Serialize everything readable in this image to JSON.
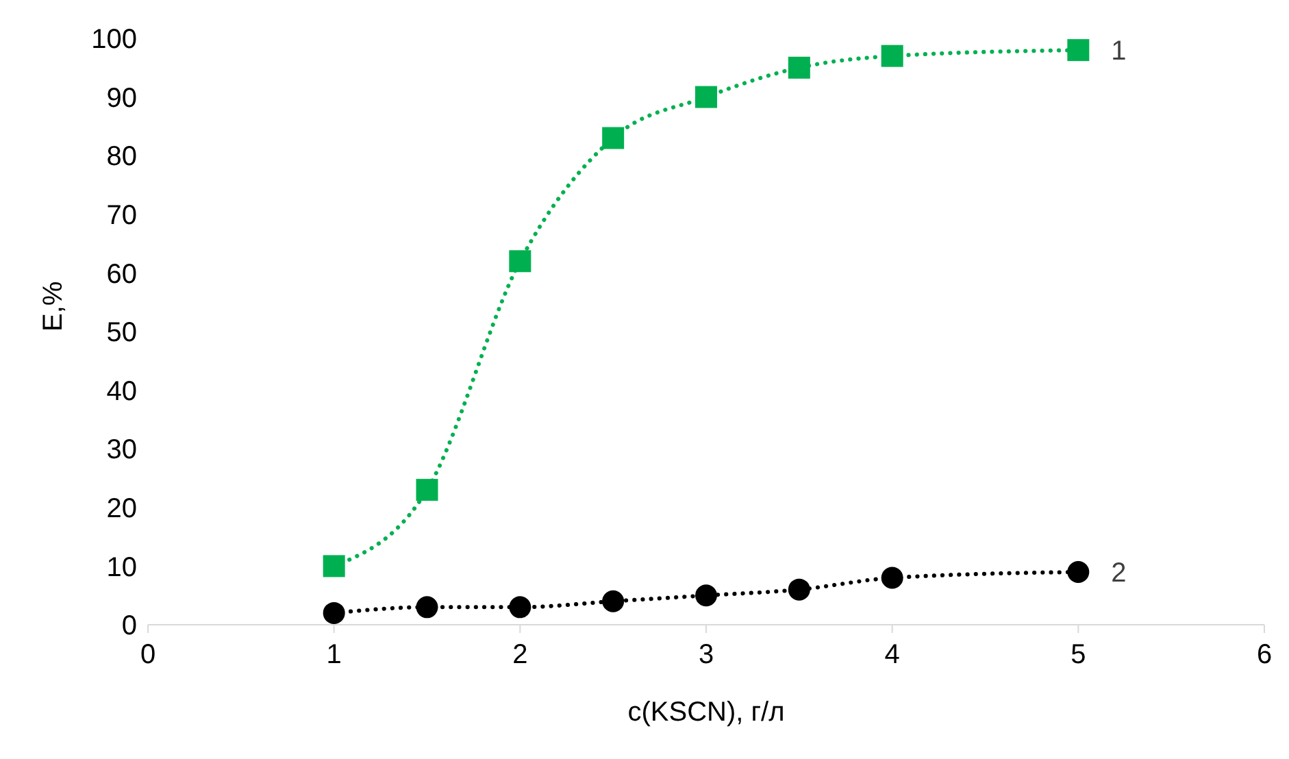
{
  "chart_data": {
    "type": "line",
    "xlabel": "c(KSCN), г/л",
    "ylabel": "E,%",
    "xlim": [
      0,
      6
    ],
    "xticks": [
      0,
      1,
      2,
      3,
      4,
      5,
      6
    ],
    "ylim": [
      0,
      100
    ],
    "yticks": [
      0,
      10,
      20,
      30,
      40,
      50,
      60,
      70,
      80,
      90,
      100
    ],
    "grid": false,
    "legend": false,
    "line_style": "dotted",
    "series": [
      {
        "name": "1",
        "color": "#00b050",
        "marker": "square",
        "x": [
          1,
          1.5,
          2,
          2.5,
          3,
          3.5,
          4,
          5
        ],
        "values": [
          10,
          23,
          62,
          83,
          90,
          95,
          97,
          98
        ]
      },
      {
        "name": "2",
        "color": "#000000",
        "marker": "circle",
        "x": [
          1,
          1.5,
          2,
          2.5,
          3,
          3.5,
          4,
          5
        ],
        "values": [
          2,
          3,
          3,
          4,
          5,
          6,
          8,
          9
        ]
      }
    ]
  }
}
